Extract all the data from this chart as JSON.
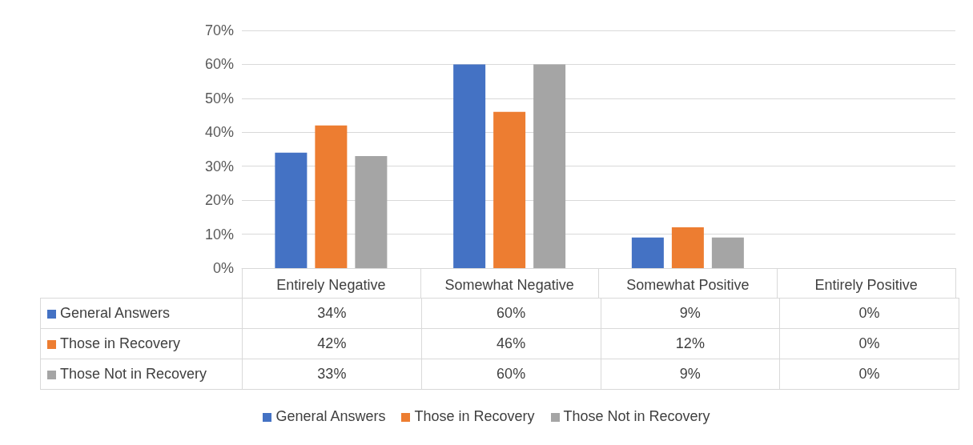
{
  "chart_data": {
    "type": "bar",
    "categories": [
      "Entirely Negative",
      "Somewhat Negative",
      "Somewhat Positive",
      "Entirely Positive"
    ],
    "series": [
      {
        "name": "General Answers",
        "color": "#4472c4",
        "values": [
          34,
          60,
          9,
          0
        ],
        "value_labels": [
          "34%",
          "60%",
          "9%",
          "0%"
        ]
      },
      {
        "name": "Those in Recovery",
        "color": "#ed7d31",
        "values": [
          42,
          46,
          12,
          0
        ],
        "value_labels": [
          "42%",
          "46%",
          "12%",
          "0%"
        ]
      },
      {
        "name": "Those Not in Recovery",
        "color": "#a5a5a5",
        "values": [
          33,
          60,
          9,
          0
        ],
        "value_labels": [
          "33%",
          "60%",
          "9%",
          "0%"
        ]
      }
    ],
    "ylim": [
      0,
      70
    ],
    "yticks": [
      {
        "value": 0,
        "label": "0%"
      },
      {
        "value": 10,
        "label": "10%"
      },
      {
        "value": 20,
        "label": "20%"
      },
      {
        "value": 30,
        "label": "30%"
      },
      {
        "value": 40,
        "label": "40%"
      },
      {
        "value": 50,
        "label": "50%"
      },
      {
        "value": 60,
        "label": "60%"
      },
      {
        "value": 70,
        "label": "70%"
      }
    ],
    "grid": "y",
    "legend": "bottom"
  }
}
